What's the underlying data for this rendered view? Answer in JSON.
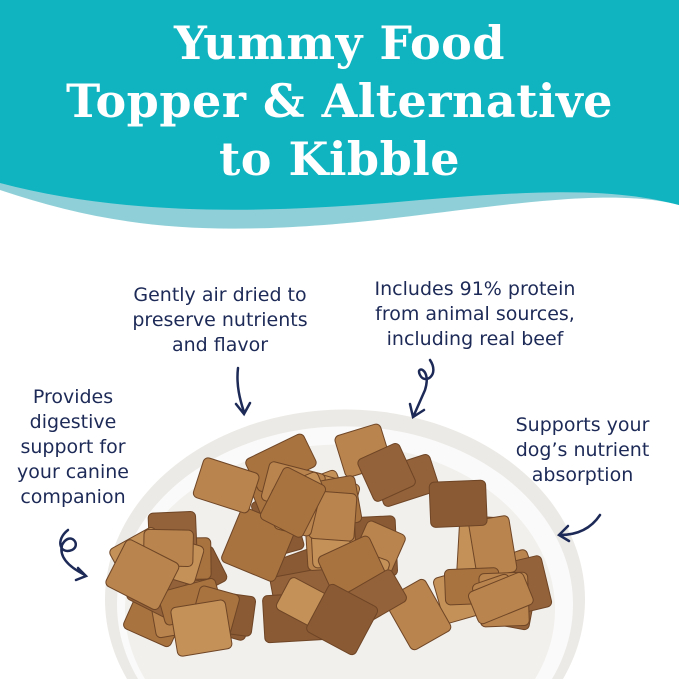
{
  "title_lines": [
    "Yummy Food",
    "Topper & Alternative",
    "to Kibble"
  ],
  "callouts": {
    "air_dried": [
      "Gently air dried to",
      "preserve nutrients",
      "and flavor"
    ],
    "protein": [
      "Includes 91% protein",
      "from animal sources,",
      "including real beef"
    ],
    "digestive": [
      "Provides",
      "digestive",
      "support for",
      "your canine",
      "companion"
    ],
    "absorption": [
      "Supports your",
      "dog’s nutrient",
      "absorption"
    ]
  },
  "colors": {
    "header_teal": "#10b4c1",
    "wave_light": "#8fd0d8",
    "text_navy": "#1d2a57",
    "food_brown": "#a8733f"
  },
  "icons": [
    "curly-arrow-icon"
  ]
}
